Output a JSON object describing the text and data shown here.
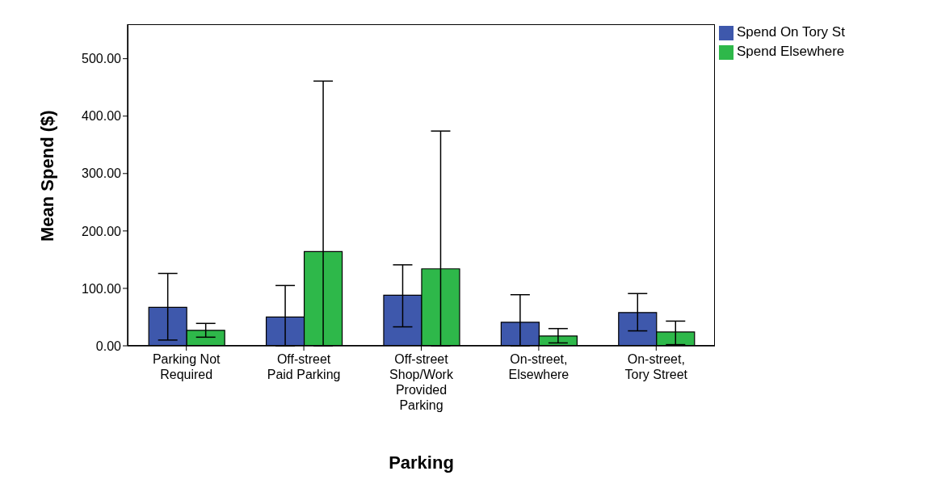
{
  "chart_data": {
    "type": "bar",
    "xlabel": "Parking",
    "ylabel": "Mean Spend ($)",
    "categories": [
      "Parking Not Required",
      "Off-street Paid Parking",
      "Off-street Shop/Work Provided Parking",
      "On-street, Elsewhere",
      "On-street, Tory Street"
    ],
    "series": [
      {
        "name": "Spend On Tory St",
        "color": "#3e58ac",
        "values": [
          67,
          50,
          88,
          41,
          58
        ],
        "errors": [
          [
            10,
            126
          ],
          [
            0,
            105
          ],
          [
            33,
            141
          ],
          [
            0,
            89
          ],
          [
            26,
            91
          ]
        ]
      },
      {
        "name": "Spend Elsewhere",
        "color": "#2eb84a",
        "values": [
          27,
          164,
          134,
          17,
          24
        ],
        "errors": [
          [
            15,
            39
          ],
          [
            0,
            461
          ],
          [
            0,
            374
          ],
          [
            5,
            30
          ],
          [
            2,
            43
          ]
        ]
      }
    ],
    "ylim": [
      0,
      560
    ],
    "yticks": [
      {
        "value": 0,
        "label": "0.00"
      },
      {
        "value": 100,
        "label": "100.00"
      },
      {
        "value": 200,
        "label": "200.00"
      },
      {
        "value": 300,
        "label": "300.00"
      },
      {
        "value": 400,
        "label": "400.00"
      },
      {
        "value": 500,
        "label": "500.00"
      }
    ],
    "grid": false,
    "legend": "top right"
  }
}
